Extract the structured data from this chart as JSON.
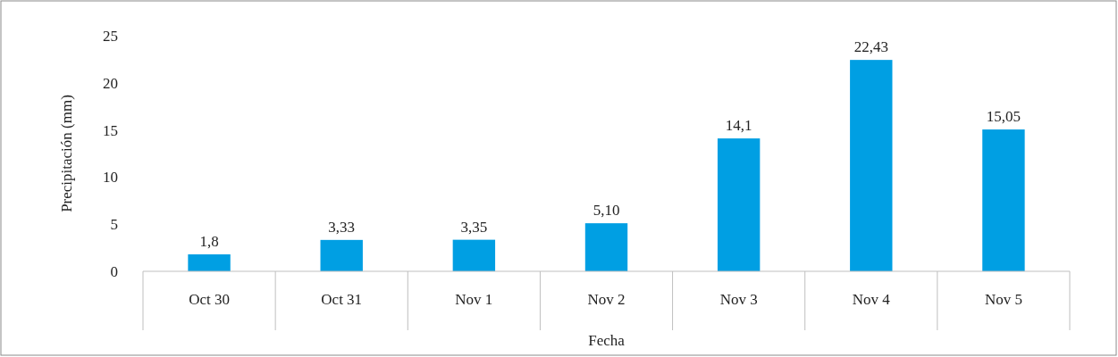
{
  "chart_data": {
    "type": "bar",
    "xlabel": "Fecha",
    "ylabel": "Precipitación (mm)",
    "categories": [
      "Oct 30",
      "Oct 31",
      "Nov 1",
      "Nov 2",
      "Nov 3",
      "Nov 4",
      "Nov 5"
    ],
    "values": [
      1.8,
      3.33,
      3.35,
      5.1,
      14.1,
      22.43,
      15.05
    ],
    "value_labels": [
      "1,8",
      "3,33",
      "3,35",
      "5,10",
      "14,1",
      "22,43",
      "15,05"
    ],
    "color": "#009fe3",
    "ylim": [
      0,
      25
    ],
    "yticks": [
      0,
      5,
      10,
      15,
      20,
      25
    ],
    "grid": false
  }
}
